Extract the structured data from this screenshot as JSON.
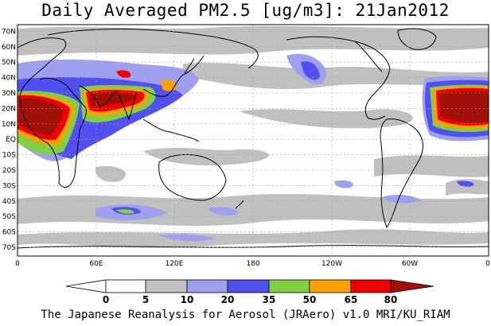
{
  "title": "Daily Averaged PM2.5 [ug/m3]: 21Jan2012",
  "footer": "The Japanese Reanalysis for Aerosol (JRAero) v1.0 MRI/KU_RIAM",
  "lat_ticks": [
    "70N",
    "60N",
    "50N",
    "40N",
    "30N",
    "20N",
    "10N",
    "EQ",
    "10S",
    "20S",
    "30S",
    "40S",
    "50S",
    "60S",
    "70S"
  ],
  "lon_ticks": [
    "0",
    "60E",
    "120E",
    "180",
    "120W",
    "60W",
    "0"
  ],
  "legend": {
    "labels": [
      "0",
      "5",
      "10",
      "20",
      "35",
      "50",
      "65",
      "80"
    ],
    "colors": [
      "#ffffff",
      "#c0c0c0",
      "#a0a0f0",
      "#5050f0",
      "#80d040",
      "#ffa000",
      "#f00000",
      "#a01008"
    ]
  },
  "map_colors": {
    "ocean_bg": "#ffffff",
    "grid": "#a0a0a0",
    "coast": "#000000"
  }
}
